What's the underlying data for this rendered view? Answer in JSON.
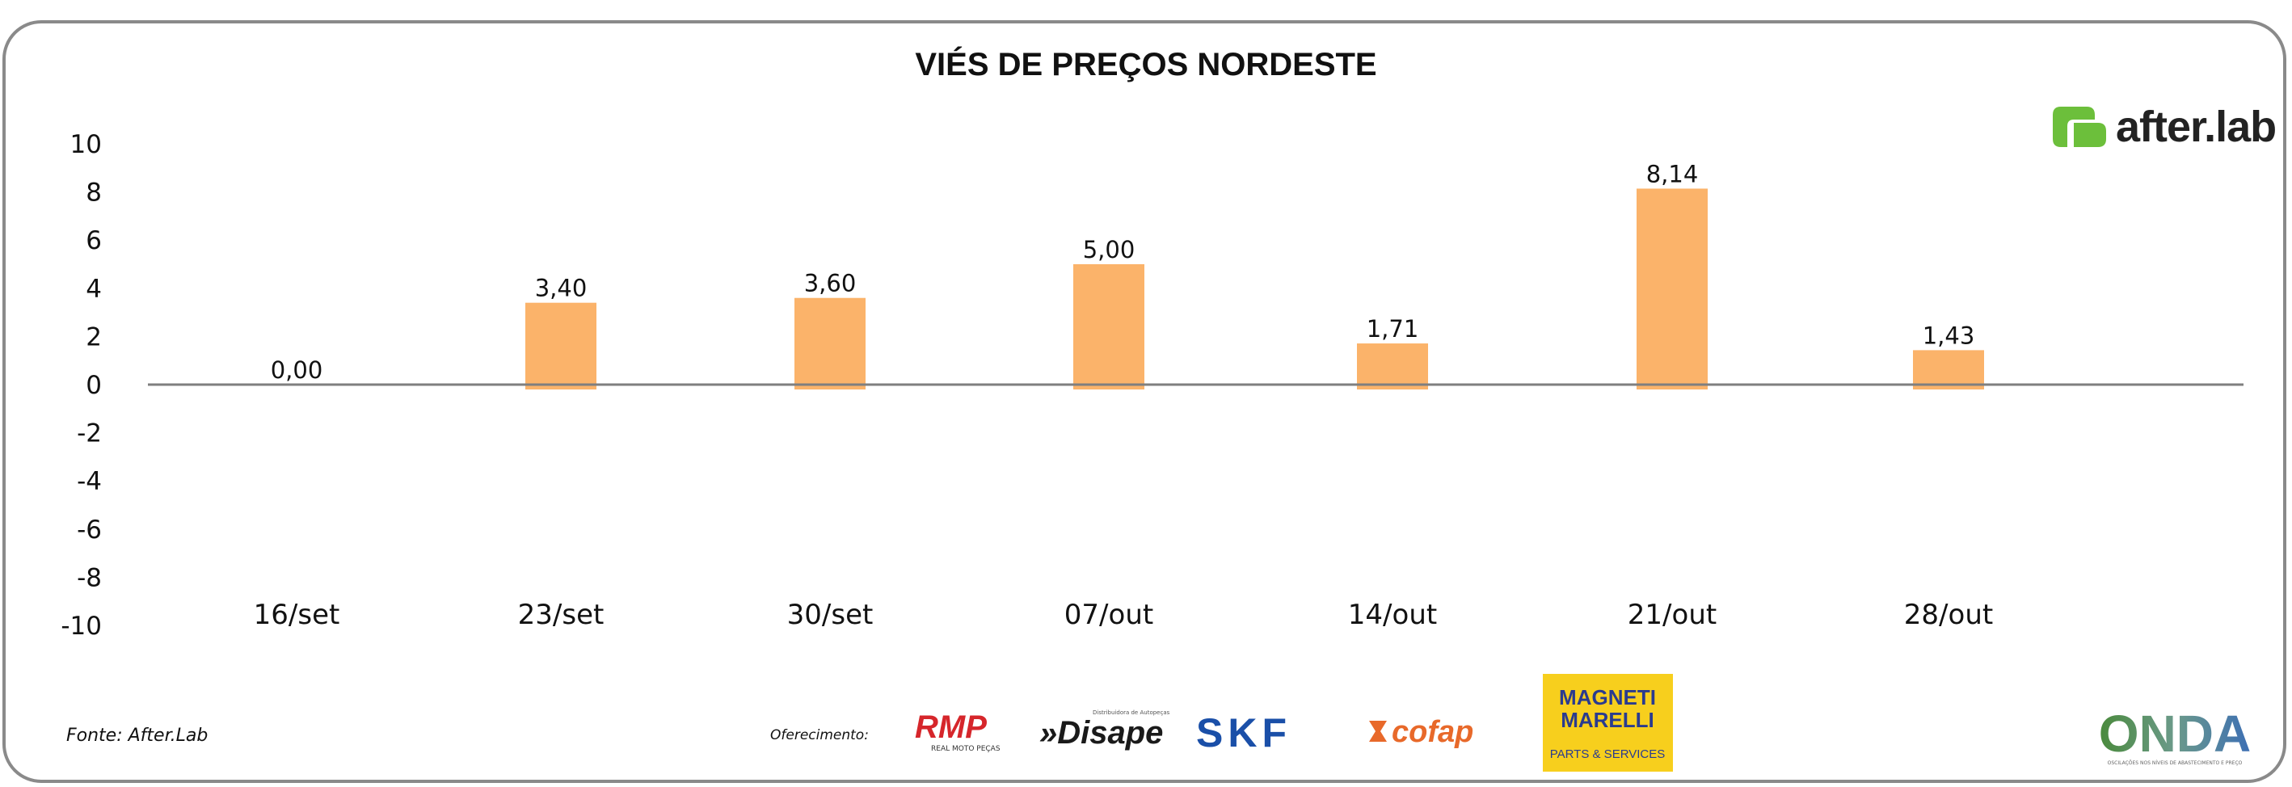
{
  "chart_data": {
    "type": "bar",
    "title": "VIÉS DE PREÇOS NORDESTE",
    "categories": [
      "16/set",
      "23/set",
      "30/set",
      "07/out",
      "14/out",
      "21/out",
      "28/out"
    ],
    "values": [
      0.0,
      3.4,
      3.6,
      5.0,
      1.71,
      8.14,
      1.43
    ],
    "data_labels": [
      "0,00",
      "3,40",
      "3,60",
      "5,00",
      "1,71",
      "8,14",
      "1,43"
    ],
    "ylim": [
      -10,
      10
    ],
    "yticks": [
      "10",
      "8",
      "6",
      "4",
      "2",
      "0",
      "-2",
      "-4",
      "-6",
      "-8",
      "-10"
    ],
    "xlabel": "",
    "ylabel": "",
    "grid": false,
    "bar_color": "#fbb36a",
    "axis_color": "#7f7f7f"
  },
  "header": {
    "brand": "after.lab",
    "brand_colors": {
      "green": "#6cbf3b",
      "text": "#222222"
    }
  },
  "footer": {
    "source": "Fonte: After.Lab",
    "sponsor_label": "Oferecimento:",
    "sponsors": {
      "rmp": {
        "name": "RMP",
        "tagline": "REAL MOTO PEÇAS",
        "color": "#d6262b"
      },
      "disape": {
        "name": "»Disape",
        "tagline": "Distribuidora de Autopeças",
        "color": "#1a1a1a"
      },
      "skf": {
        "name": "SKF",
        "color": "#1a4fa8"
      },
      "cofap": {
        "name": "cofap",
        "color": "#e8692a"
      },
      "magneti": {
        "line1": "MAGNETI",
        "line2": "MARELLI",
        "tagline": "PARTS & SERVICES",
        "color": "#f7cf1d",
        "text_color": "#2a3b8f"
      },
      "onda": {
        "name": "ONDA",
        "tagline": "OSCILAÇÕES NOS NÍVEIS DE ABASTECIMENTO E PREÇO"
      }
    }
  }
}
